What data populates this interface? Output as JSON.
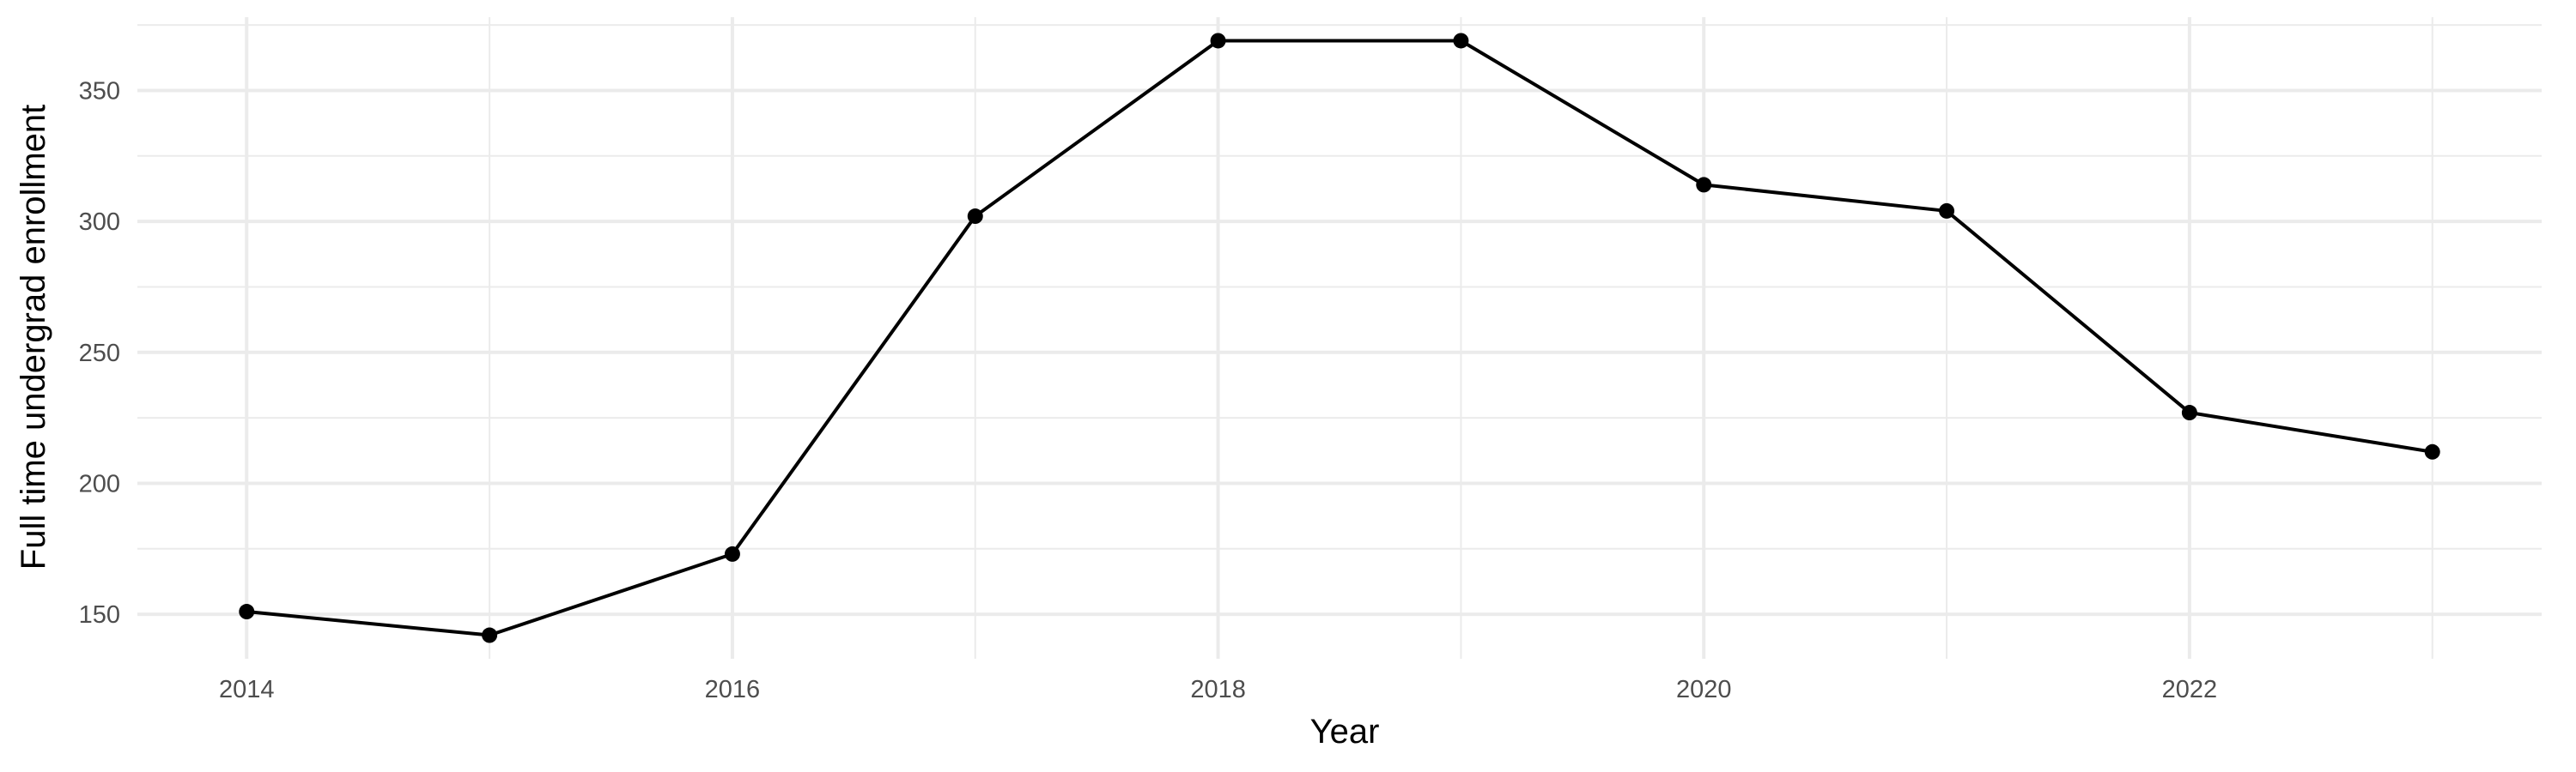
{
  "chart_data": {
    "type": "line",
    "title": "",
    "xlabel": "Year",
    "ylabel": "Full time undergrad enrollment",
    "x": [
      2014,
      2015,
      2016,
      2017,
      2018,
      2019,
      2020,
      2021,
      2022,
      2023
    ],
    "series": [
      {
        "values": [
          151,
          142,
          173,
          302,
          369,
          369,
          314,
          304,
          227,
          212
        ]
      }
    ],
    "xlim": [
      2013.55,
      2023.45
    ],
    "ylim": [
      133,
      378
    ],
    "x_major_ticks": [
      2014,
      2016,
      2018,
      2020,
      2022
    ],
    "x_tick_labels": [
      "2014",
      "2016",
      "2018",
      "2020",
      "2022"
    ],
    "x_minor_ticks": [
      2015,
      2017,
      2019,
      2021,
      2023
    ],
    "y_major_ticks": [
      150,
      200,
      250,
      300,
      350
    ],
    "y_tick_labels": [
      "150",
      "200",
      "250",
      "300",
      "350"
    ],
    "y_minor_ticks": [
      175,
      225,
      275,
      325,
      375
    ],
    "grid": true,
    "legend": "none",
    "colors": {
      "line": "#000000",
      "point": "#000000",
      "grid": "#ebebeb",
      "background": "#ffffff",
      "tick_text": "#4d4d4d",
      "axis_title": "#000000"
    }
  }
}
